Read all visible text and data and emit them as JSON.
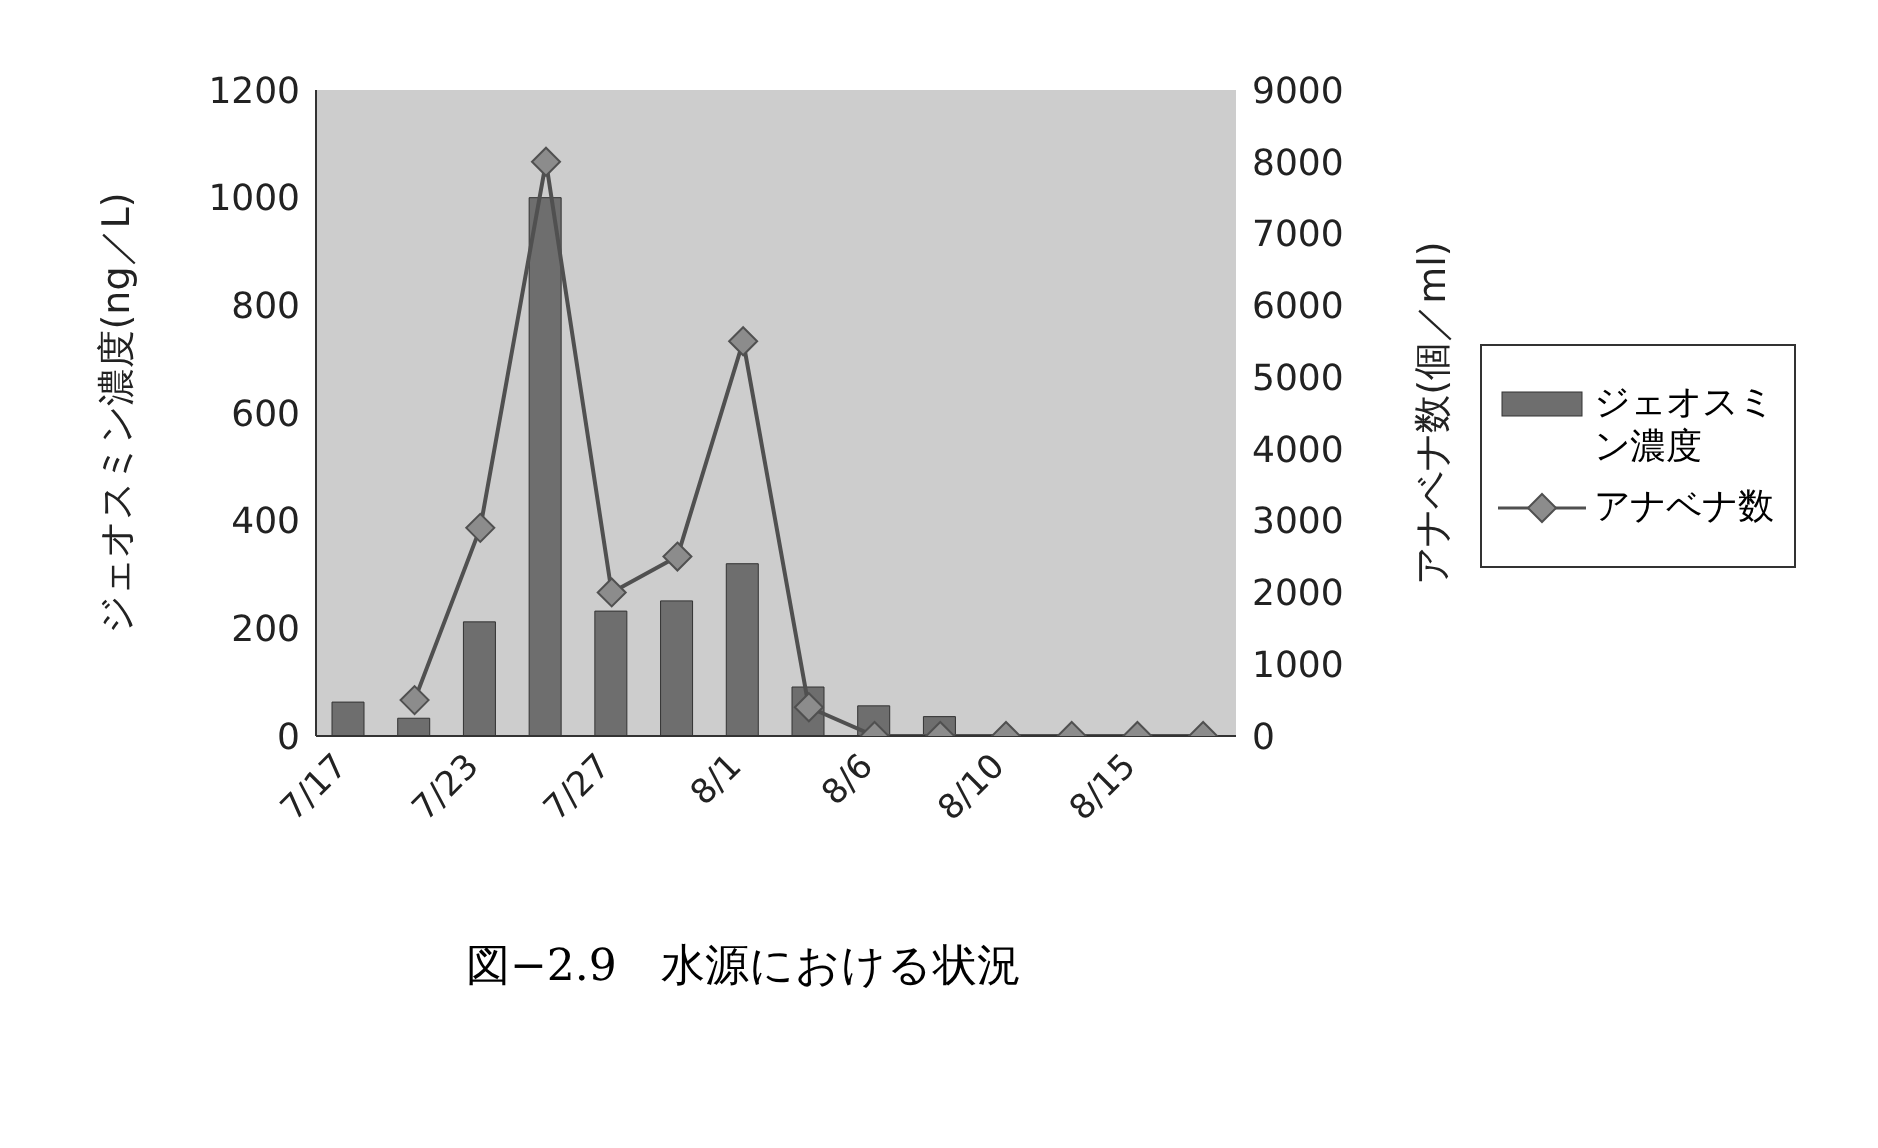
{
  "chart_data": {
    "type": "bar",
    "title": "図−2.9　水源における状況",
    "ylabel": "ジェオスミン濃度(ng／L)",
    "y2label": "アナベナ数(個／ml)",
    "categories": [
      "7/17",
      null,
      "7/23",
      null,
      "7/27",
      null,
      "8/1",
      null,
      "8/6",
      null,
      "8/10",
      null,
      "8/15",
      null
    ],
    "series": [
      {
        "name": "ジェオスミン濃度",
        "color": "#6e6e6e",
        "values": [
          63,
          33,
          212,
          1000,
          232,
          251,
          320,
          91,
          56,
          36,
          0,
          0,
          0,
          0
        ]
      },
      {
        "name": "アナベナ数",
        "type": "line",
        "axis": "y2",
        "color": "#505050",
        "marker": "diamond",
        "line_style": "solid",
        "values": [
          null,
          500,
          2900,
          8000,
          2000,
          2500,
          5500,
          400,
          0,
          0,
          0,
          0,
          0,
          0
        ]
      }
    ],
    "ylim": [
      0,
      1200
    ],
    "yticks": [
      0,
      200,
      400,
      600,
      800,
      1000,
      1200
    ],
    "y2lim": [
      0,
      9000
    ],
    "y2ticks": [
      0,
      1000,
      2000,
      3000,
      4000,
      5000,
      6000,
      7000,
      8000,
      9000
    ],
    "grid": false,
    "legend": "right"
  }
}
